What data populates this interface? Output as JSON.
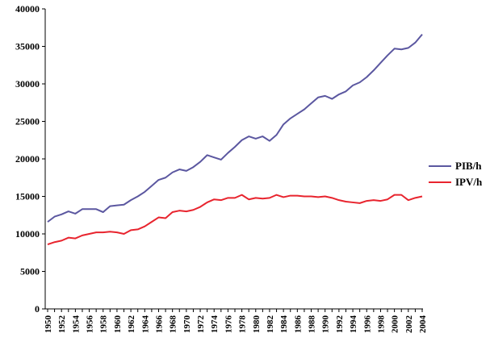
{
  "chart_data": {
    "type": "line",
    "title": "",
    "xlabel": "",
    "ylabel": "",
    "ylim": [
      0,
      40000
    ],
    "yticks": [
      0,
      5000,
      10000,
      15000,
      20000,
      25000,
      30000,
      35000,
      40000
    ],
    "xlim": [
      1950,
      2004
    ],
    "xticks": [
      1950,
      1952,
      1954,
      1956,
      1958,
      1960,
      1962,
      1964,
      1966,
      1968,
      1970,
      1972,
      1974,
      1976,
      1978,
      1980,
      1982,
      1984,
      1986,
      1988,
      1990,
      1992,
      1994,
      1996,
      1998,
      2000,
      2002,
      2004
    ],
    "grid": false,
    "legend_position": "right",
    "x": [
      1950,
      1951,
      1952,
      1953,
      1954,
      1955,
      1956,
      1957,
      1958,
      1959,
      1960,
      1961,
      1962,
      1963,
      1964,
      1965,
      1966,
      1967,
      1968,
      1969,
      1970,
      1971,
      1972,
      1973,
      1974,
      1975,
      1976,
      1977,
      1978,
      1979,
      1980,
      1981,
      1982,
      1983,
      1984,
      1985,
      1986,
      1987,
      1988,
      1989,
      1990,
      1991,
      1992,
      1993,
      1994,
      1995,
      1996,
      1997,
      1998,
      1999,
      2000,
      2001,
      2002,
      2003,
      2004
    ],
    "series": [
      {
        "name": "PIB/h",
        "color": "#5b57a0",
        "values": [
          11600,
          12300,
          12600,
          13000,
          12700,
          13300,
          13300,
          13300,
          12900,
          13700,
          13800,
          13900,
          14500,
          15000,
          15600,
          16400,
          17200,
          17500,
          18200,
          18600,
          18400,
          18900,
          19600,
          20500,
          20200,
          19900,
          20800,
          21600,
          22500,
          23000,
          22700,
          23000,
          22400,
          23200,
          24600,
          25400,
          26000,
          26600,
          27400,
          28200,
          28400,
          28000,
          28600,
          29000,
          29800,
          30200,
          30900,
          31800,
          32800,
          33800,
          34700,
          34600,
          34800,
          35500,
          36600
        ]
      },
      {
        "name": "IPV/h",
        "color": "#e8242e",
        "values": [
          8600,
          8900,
          9100,
          9500,
          9400,
          9800,
          10000,
          10200,
          10200,
          10300,
          10200,
          10000,
          10500,
          10600,
          11000,
          11600,
          12200,
          12100,
          12900,
          13100,
          13000,
          13200,
          13600,
          14200,
          14600,
          14500,
          14800,
          14800,
          15200,
          14600,
          14800,
          14700,
          14800,
          15200,
          14900,
          15100,
          15100,
          15000,
          15000,
          14900,
          15000,
          14800,
          14500,
          14300,
          14200,
          14100,
          14400,
          14500,
          14400,
          14600,
          15200,
          15200,
          14500,
          14800,
          15000
        ]
      }
    ]
  }
}
